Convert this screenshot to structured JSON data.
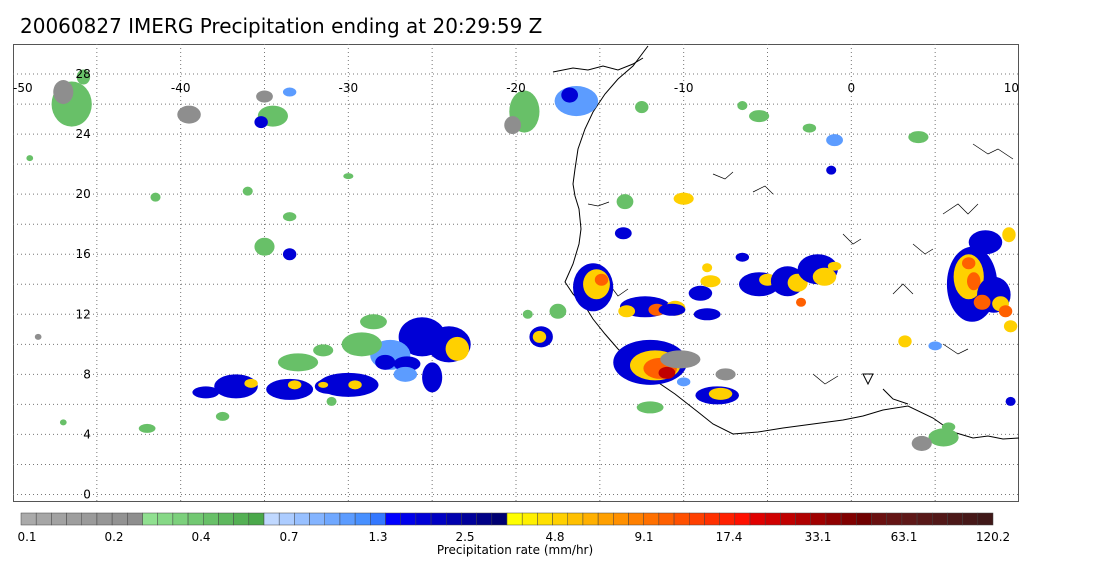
{
  "title": "20060827 IMERG Precipitation ending at 20:29:59 Z",
  "map": {
    "lon_labels": [
      "-50",
      "-40",
      "-30",
      "-20",
      "-10",
      "0",
      "10"
    ],
    "lat_labels": [
      "28",
      "24",
      "20",
      "16",
      "12",
      "8",
      "4",
      "0"
    ],
    "lon_range": [
      -50,
      10
    ],
    "lat_range": [
      -0.5,
      30
    ],
    "grid": true
  },
  "colorbar": {
    "title": "Precipitation rate (mm/hr)",
    "tick_labels": [
      "0.1",
      "0.2",
      "0.4",
      "0.7",
      "1.3",
      "2.5",
      "4.8",
      "9.1",
      "17.4",
      "33.1",
      "63.1",
      "120.2"
    ],
    "colors": [
      "#aaaaaa",
      "#a6a6a6",
      "#a2a2a2",
      "#9e9e9e",
      "#9a9a9a",
      "#969696",
      "#929292",
      "#8e8e8e",
      "#90e090",
      "#86d886",
      "#7cd07c",
      "#72c872",
      "#68c068",
      "#5eb85e",
      "#54b054",
      "#4aa84a",
      "#c0d8ff",
      "#acccff",
      "#98c0ff",
      "#84b4ff",
      "#70a8ff",
      "#5c9cff",
      "#4890ff",
      "#3478ff",
      "#0000ff",
      "#0000ea",
      "#0000d6",
      "#0000c2",
      "#0000ae",
      "#00009a",
      "#000086",
      "#000072",
      "#ffff00",
      "#fff000",
      "#ffe000",
      "#ffd000",
      "#ffc000",
      "#ffb000",
      "#ffa000",
      "#ff9000",
      "#ff8000",
      "#ff7000",
      "#ff6000",
      "#ff5000",
      "#ff4000",
      "#ff3000",
      "#ff2000",
      "#ff1000",
      "#e00000",
      "#d00000",
      "#c00000",
      "#b00000",
      "#a00000",
      "#900000",
      "#800000",
      "#700000",
      "#6a1010",
      "#641414",
      "#5e1818",
      "#581818",
      "#521818",
      "#4c1818",
      "#461818",
      "#401818"
    ]
  }
}
